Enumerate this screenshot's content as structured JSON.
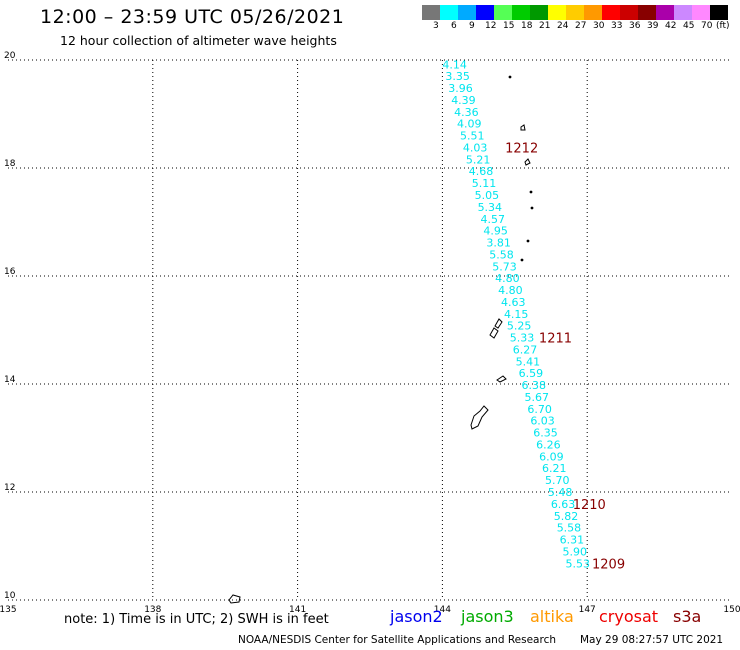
{
  "header": {
    "title": "12:00 – 23:59 UTC 05/26/2021",
    "subtitle": "12 hour collection of altimeter wave heights"
  },
  "legend": {
    "unit": "(ft)",
    "colors": [
      "#777777",
      "#00ffff",
      "#00aaff",
      "#0000ff",
      "#55ff55",
      "#00cc00",
      "#009900",
      "#ffff00",
      "#ffcc00",
      "#ff9900",
      "#ff0000",
      "#cc0000",
      "#880000",
      "#aa00aa",
      "#cc88ff",
      "#ff88ff",
      "#000000"
    ],
    "labels": [
      "3",
      "6",
      "9",
      "12",
      "15",
      "18",
      "21",
      "24",
      "27",
      "30",
      "33",
      "36",
      "39",
      "42",
      "45",
      "70"
    ]
  },
  "axes": {
    "x_ticks": [
      "135",
      "138",
      "141",
      "144",
      "147",
      "150"
    ],
    "y_ticks": [
      "10",
      "12",
      "14",
      "16",
      "18",
      "20"
    ]
  },
  "track": {
    "color": "#00e5ee",
    "points": [
      {
        "lat": 19.92,
        "v": "4.14"
      },
      {
        "lat": 19.7,
        "v": "3.35"
      },
      {
        "lat": 19.48,
        "v": "3.96"
      },
      {
        "lat": 19.26,
        "v": "4.39"
      },
      {
        "lat": 19.04,
        "v": "4.36"
      },
      {
        "lat": 18.82,
        "v": "4.09"
      },
      {
        "lat": 18.6,
        "v": "5.51"
      },
      {
        "lat": 18.38,
        "v": "4.03"
      },
      {
        "lat": 18.16,
        "v": "5.21"
      },
      {
        "lat": 17.94,
        "v": "4.68"
      },
      {
        "lat": 17.72,
        "v": "5.11"
      },
      {
        "lat": 17.5,
        "v": "5.05"
      },
      {
        "lat": 17.28,
        "v": "5.34"
      },
      {
        "lat": 17.06,
        "v": "4.57"
      },
      {
        "lat": 16.84,
        "v": "4.95"
      },
      {
        "lat": 16.62,
        "v": "3.81"
      },
      {
        "lat": 16.4,
        "v": "5.58"
      },
      {
        "lat": 16.18,
        "v": "5.73"
      },
      {
        "lat": 15.96,
        "v": "4.80"
      },
      {
        "lat": 15.74,
        "v": "4.80"
      },
      {
        "lat": 15.52,
        "v": "4.63"
      },
      {
        "lat": 15.3,
        "v": "4.15"
      },
      {
        "lat": 15.08,
        "v": "5.25"
      },
      {
        "lat": 14.86,
        "v": "5.33"
      },
      {
        "lat": 14.64,
        "v": "6.27"
      },
      {
        "lat": 14.42,
        "v": "5.41"
      },
      {
        "lat": 14.2,
        "v": "6.59"
      },
      {
        "lat": 13.98,
        "v": "6.38"
      },
      {
        "lat": 13.76,
        "v": "5.67"
      },
      {
        "lat": 13.54,
        "v": "6.70"
      },
      {
        "lat": 13.32,
        "v": "6.03"
      },
      {
        "lat": 13.1,
        "v": "6.35"
      },
      {
        "lat": 12.88,
        "v": "6.26"
      },
      {
        "lat": 12.66,
        "v": "6.09"
      },
      {
        "lat": 12.44,
        "v": "6.21"
      },
      {
        "lat": 12.22,
        "v": "5.70"
      },
      {
        "lat": 12.0,
        "v": "5.48"
      },
      {
        "lat": 11.78,
        "v": "6.63"
      },
      {
        "lat": 11.56,
        "v": "5.82"
      },
      {
        "lat": 11.34,
        "v": "5.58"
      },
      {
        "lat": 11.12,
        "v": "6.31"
      },
      {
        "lat": 10.9,
        "v": "5.90"
      },
      {
        "lat": 10.68,
        "v": "5.53"
      }
    ],
    "time_labels": [
      {
        "lon": 145.3,
        "lat": 18.38,
        "text": "1212"
      },
      {
        "lon": 146.0,
        "lat": 14.86,
        "text": "1211"
      },
      {
        "lon": 146.7,
        "lat": 11.78,
        "text": "1210"
      },
      {
        "lon": 147.1,
        "lat": 10.68,
        "text": "1209"
      }
    ],
    "time_label_color": "#880000"
  },
  "footer": {
    "note": "note: 1) Time is in UTC; 2) SWH is in feet",
    "satellites": [
      {
        "name": "jason2",
        "color": "#0000ee"
      },
      {
        "name": "jason3",
        "color": "#00aa00"
      },
      {
        "name": "altika",
        "color": "#ff9900"
      },
      {
        "name": "cryosat",
        "color": "#ee0000"
      },
      {
        "name": "s3a",
        "color": "#880000"
      }
    ],
    "credit": "NOAA/NESDIS Center for Satellite Applications and Research",
    "timestamp": "May 29 08:27:57 UTC 2021"
  }
}
